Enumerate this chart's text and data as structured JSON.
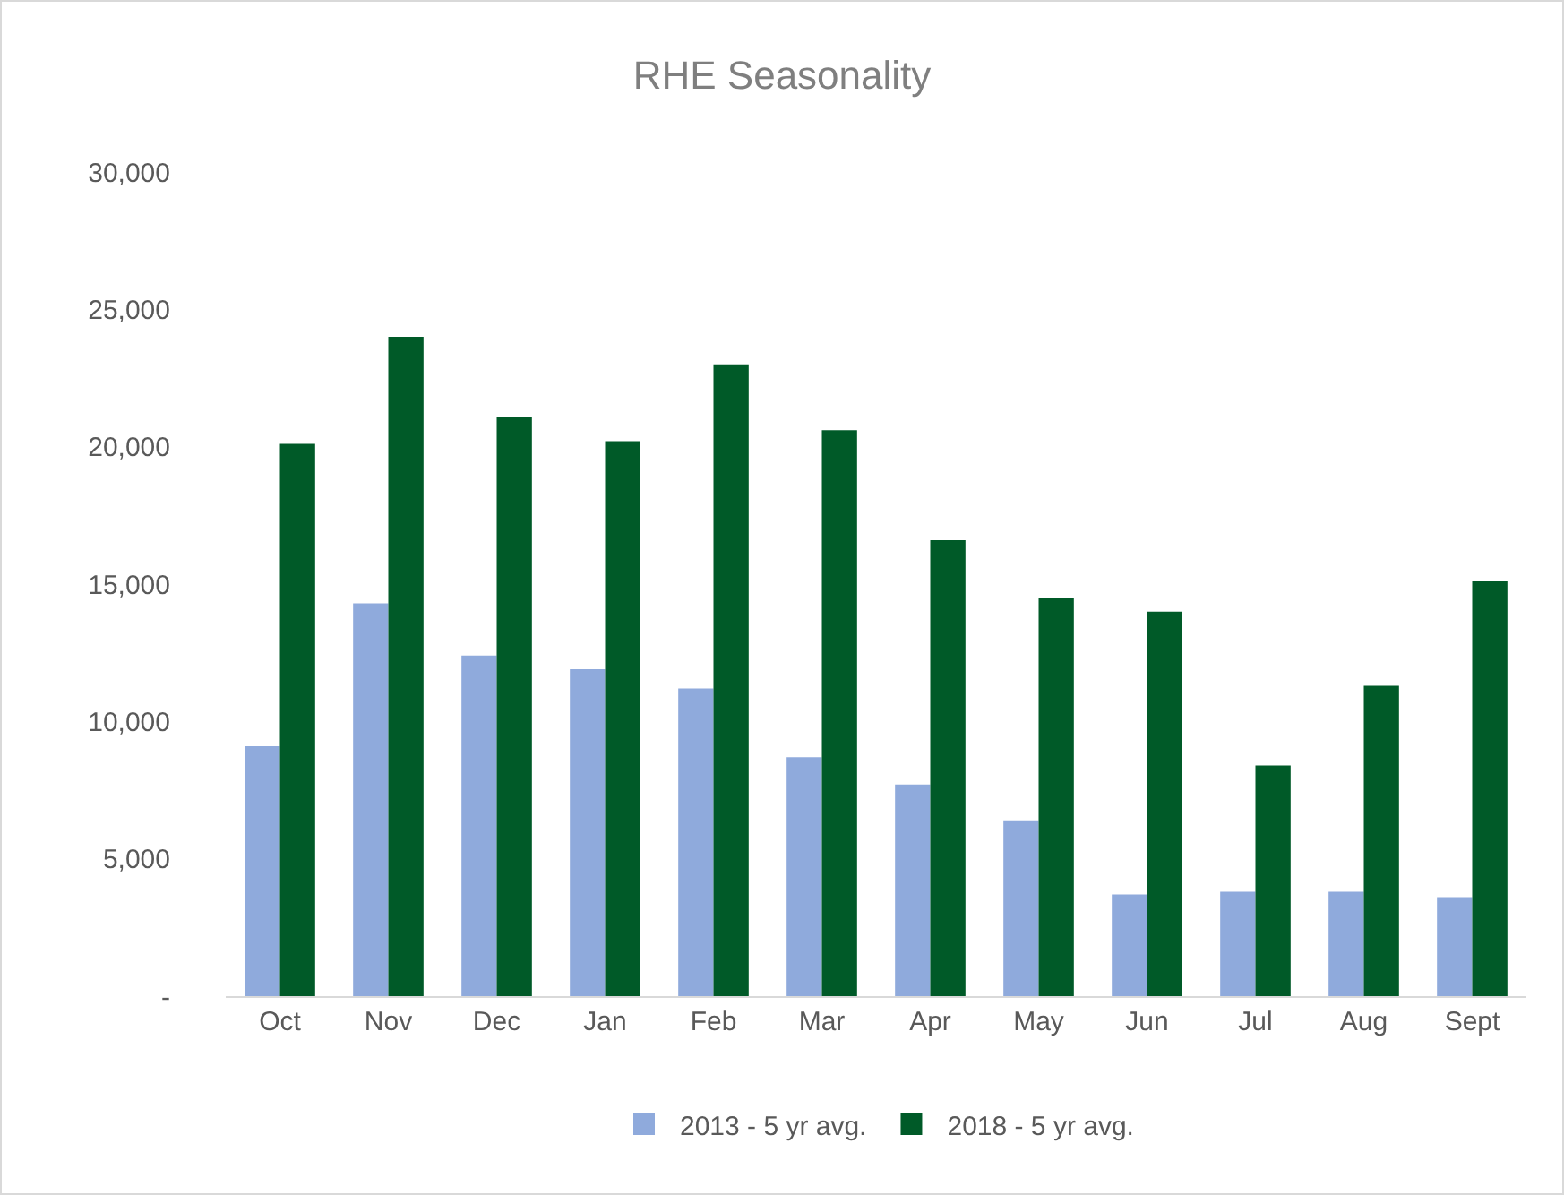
{
  "chart_data": {
    "type": "bar",
    "title": "RHE Seasonality",
    "categories": [
      "Oct",
      "Nov",
      "Dec",
      "Jan",
      "Feb",
      "Mar",
      "Apr",
      "May",
      "Jun",
      "Jul",
      "Aug",
      "Sept"
    ],
    "series": [
      {
        "name": "2013 - 5 yr avg.",
        "color": "#8faadc",
        "values": [
          9100,
          14300,
          12400,
          11900,
          11200,
          8700,
          7700,
          6400,
          3700,
          3800,
          3800,
          3600
        ]
      },
      {
        "name": "2018 - 5 yr avg.",
        "color": "#005a28",
        "values": [
          20100,
          24000,
          21100,
          20200,
          23000,
          20600,
          16600,
          14500,
          14000,
          8400,
          11300,
          15100
        ]
      }
    ],
    "ylim": [
      0,
      30000
    ],
    "yticks": [
      {
        "value": 0,
        "label": "-"
      },
      {
        "value": 5000,
        "label": "5,000"
      },
      {
        "value": 10000,
        "label": "10,000"
      },
      {
        "value": 15000,
        "label": "15,000"
      },
      {
        "value": 20000,
        "label": "20,000"
      },
      {
        "value": 25000,
        "label": "25,000"
      },
      {
        "value": 30000,
        "label": "30,000"
      }
    ],
    "grid": false,
    "legend": "bottom"
  }
}
